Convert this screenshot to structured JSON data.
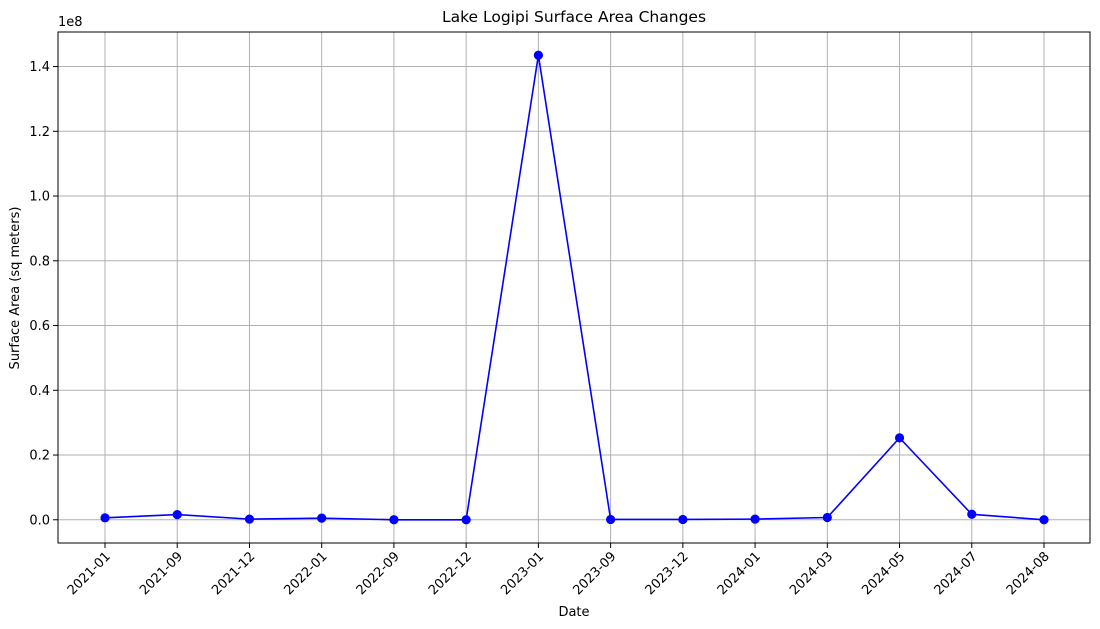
{
  "chart_data": {
    "type": "line",
    "title": "Lake Logipi Surface Area Changes",
    "xlabel": "Date",
    "ylabel": "Surface Area (sq meters)",
    "y_offset_label": "1e8",
    "categories": [
      "2021-01",
      "2021-09",
      "2021-12",
      "2022-01",
      "2022-09",
      "2022-12",
      "2023-01",
      "2023-09",
      "2023-12",
      "2024-01",
      "2024-03",
      "2024-05",
      "2024-07",
      "2024-08"
    ],
    "series": [
      {
        "values": [
          600000,
          1600000,
          200000,
          500000,
          0,
          0,
          143500000,
          100000,
          100000,
          200000,
          700000,
          25300000,
          1700000,
          0
        ],
        "color": "#0000ff",
        "marker": "circle"
      }
    ],
    "yticks": [
      0.0,
      0.2,
      0.4,
      0.6,
      0.8,
      1.0,
      1.2,
      1.4
    ],
    "ytick_labels": [
      "0.0",
      "0.2",
      "0.4",
      "0.6",
      "0.8",
      "1.0",
      "1.2",
      "1.4"
    ],
    "y_scale": 100000000,
    "ylim": [
      -7175000,
      150675000
    ],
    "grid": true,
    "line_color": "#0000ff",
    "grid_color": "#b0b0b0"
  }
}
